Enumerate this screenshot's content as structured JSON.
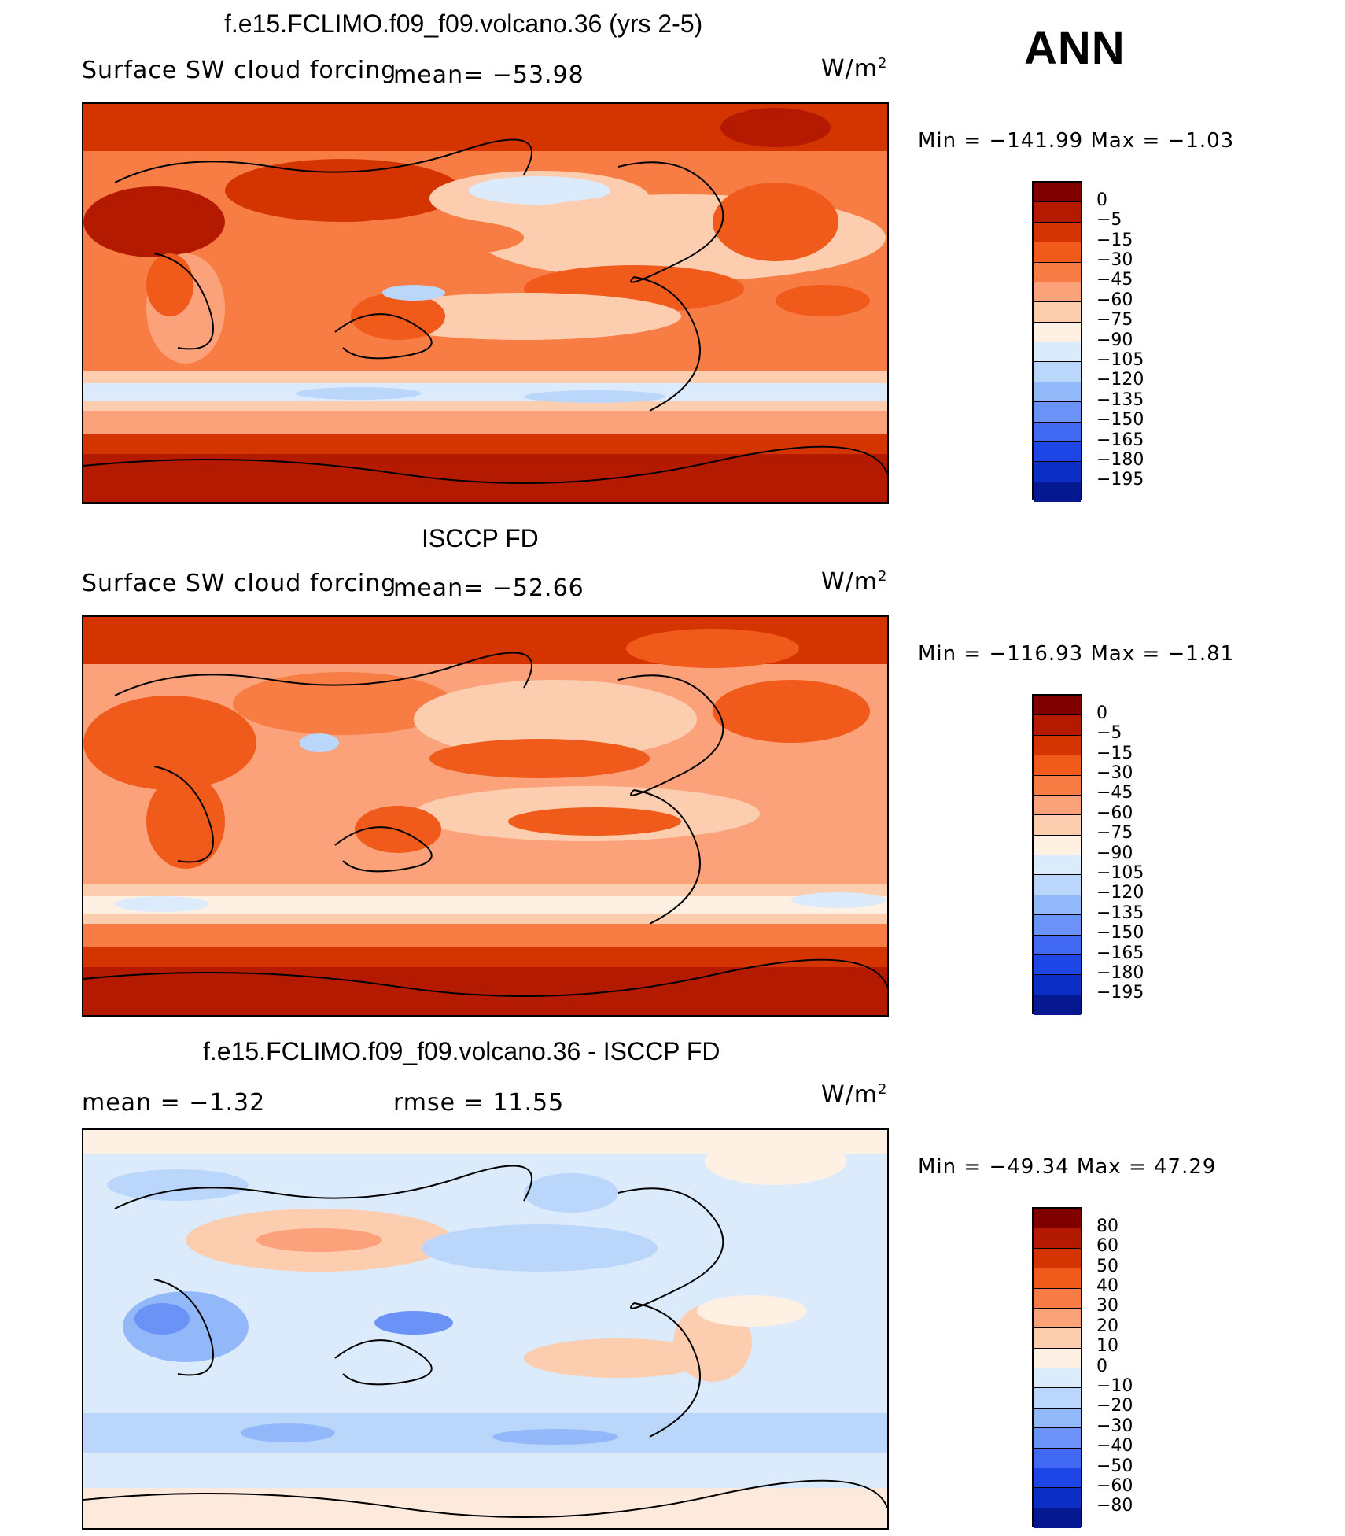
{
  "ann_label": "ANN",
  "panels": [
    {
      "title": "f.e15.FCLIMO.f09_f09.volcano.36 (yrs 2-5)",
      "left_text": "Surface SW cloud forcing",
      "mid_text": "mean=  −53.98",
      "units": "W/m",
      "units_sup": "2",
      "minmax": "Min  =  −141.99  Max  =    −1.03",
      "colorbar": {
        "colors": [
          "#800000",
          "#b31a00",
          "#d43500",
          "#f05a1a",
          "#f77d45",
          "#fba27a",
          "#fdcdb0",
          "#fff0e4",
          "#dcebfb",
          "#bbd6fb",
          "#93b8fa",
          "#6b93f7",
          "#4169f2",
          "#1e46e6",
          "#0d2ec4",
          "#06188f"
        ],
        "labels": [
          "0",
          "−5",
          "−15",
          "−30",
          "−45",
          "−60",
          "−75",
          "−90",
          "−105",
          "−120",
          "−135",
          "−150",
          "−165",
          "−180",
          "−195"
        ]
      }
    },
    {
      "title": "ISCCP FD",
      "left_text": "Surface SW cloud forcing",
      "mid_text": "mean=  −52.66",
      "units": "W/m",
      "units_sup": "2",
      "minmax": "Min  =  −116.93  Max  =    −1.81",
      "colorbar": {
        "colors": [
          "#800000",
          "#b31a00",
          "#d43500",
          "#f05a1a",
          "#f77d45",
          "#fba27a",
          "#fdcdb0",
          "#fff0e4",
          "#dcebfb",
          "#bbd6fb",
          "#93b8fa",
          "#6b93f7",
          "#4169f2",
          "#1e46e6",
          "#0d2ec4",
          "#06188f"
        ],
        "labels": [
          "0",
          "−5",
          "−15",
          "−30",
          "−45",
          "−60",
          "−75",
          "−90",
          "−105",
          "−120",
          "−135",
          "−150",
          "−165",
          "−180",
          "−195"
        ]
      }
    },
    {
      "title": "f.e15.FCLIMO.f09_f09.volcano.36 - ISCCP FD",
      "left_text": "mean  =    −1.32",
      "mid_text": "rmse  =    11.55",
      "units": "W/m",
      "units_sup": "2",
      "minmax": "Min  =  −49.34  Max  =    47.29",
      "colorbar": {
        "colors": [
          "#800000",
          "#b31a00",
          "#d43500",
          "#f05a1a",
          "#f77d45",
          "#fba27a",
          "#fdcdb0",
          "#fff0e4",
          "#dcebfb",
          "#bbd6fb",
          "#93b8fa",
          "#6b93f7",
          "#4169f2",
          "#1e46e6",
          "#0d2ec4",
          "#06188f"
        ],
        "labels": [
          "80",
          "60",
          "50",
          "40",
          "30",
          "20",
          "10",
          "0",
          "−10",
          "−20",
          "−30",
          "−40",
          "−50",
          "−60",
          "−80"
        ]
      }
    }
  ]
}
